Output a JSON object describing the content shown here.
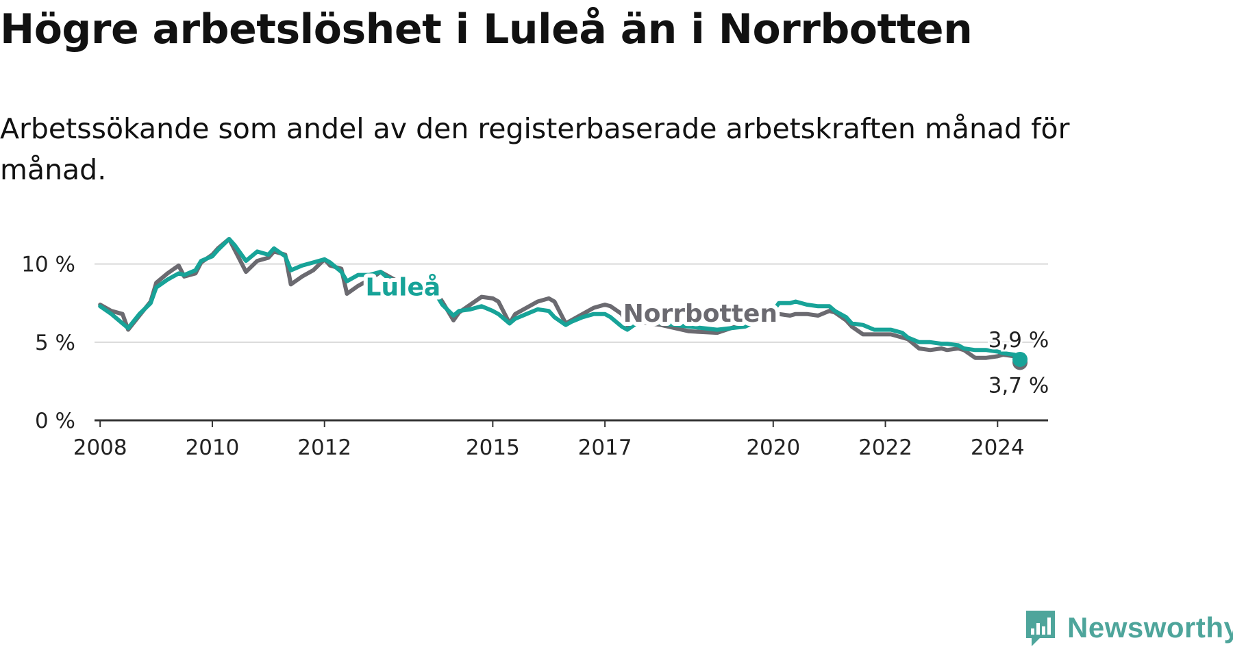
{
  "title": "Högre arbetslöshet i Luleå än i Norrbotten",
  "subtitle": "Arbetssökande som andel av den registerbaserade arbetskraften månad för månad.",
  "brand": {
    "name": "Newsworthy",
    "icon": "newsworthy-logo-icon",
    "color": "#4ea59b"
  },
  "chart_data": {
    "type": "line",
    "title": "Högre arbetslöshet i Luleå än i Norrbotten",
    "subtitle": "Arbetssökande som andel av den registerbaserade arbetskraften månad för månad.",
    "xlabel": "",
    "ylabel": "",
    "xlim": [
      2007.9,
      2024.9
    ],
    "ylim": [
      0,
      12
    ],
    "y_ticks": [
      0,
      5,
      10
    ],
    "y_tick_labels": [
      "0 %",
      "5 %",
      "10 %"
    ],
    "x_ticks": [
      2008,
      2010,
      2012,
      2015,
      2017,
      2020,
      2022,
      2024
    ],
    "x_tick_labels": [
      "2008",
      "2010",
      "2012",
      "2015",
      "2017",
      "2020",
      "2022",
      "2024"
    ],
    "grid": true,
    "series": [
      {
        "name": "Luleå",
        "color": "#17a398",
        "x": [
          2008.0,
          2008.2,
          2008.4,
          2008.5,
          2008.7,
          2008.9,
          2009.0,
          2009.2,
          2009.4,
          2009.5,
          2009.7,
          2009.8,
          2010.0,
          2010.1,
          2010.3,
          2010.4,
          2010.6,
          2010.8,
          2011.0,
          2011.1,
          2011.3,
          2011.4,
          2011.6,
          2011.8,
          2012.0,
          2012.1,
          2012.3,
          2012.4,
          2012.6,
          2012.8,
          2013.0,
          2013.1,
          2013.3,
          2013.4,
          2013.6,
          2013.8,
          2014.0,
          2014.1,
          2014.3,
          2014.4,
          2014.6,
          2014.8,
          2015.0,
          2015.1,
          2015.3,
          2015.4,
          2015.6,
          2015.8,
          2016.0,
          2016.1,
          2016.3,
          2016.4,
          2016.6,
          2016.8,
          2017.0,
          2017.1,
          2017.3,
          2017.4,
          2017.6,
          2017.8,
          2018.0,
          2018.5,
          2019.0,
          2019.5,
          2019.8,
          2020.0,
          2020.1,
          2020.3,
          2020.4,
          2020.6,
          2020.8,
          2021.0,
          2021.1,
          2021.3,
          2021.4,
          2021.6,
          2021.8,
          2022.0,
          2022.1,
          2022.3,
          2022.4,
          2022.6,
          2022.8,
          2023.0,
          2023.1,
          2023.3,
          2023.4,
          2023.6,
          2023.8,
          2024.0,
          2024.1,
          2024.3,
          2024.4
        ],
        "values": [
          7.3,
          6.8,
          6.2,
          5.9,
          6.8,
          7.5,
          8.5,
          9.0,
          9.4,
          9.3,
          9.6,
          10.2,
          10.5,
          10.9,
          11.6,
          11.2,
          10.2,
          10.8,
          10.6,
          11.0,
          10.5,
          9.6,
          9.9,
          10.1,
          10.3,
          10.1,
          9.5,
          8.9,
          9.3,
          9.3,
          9.5,
          9.2,
          8.8,
          8.6,
          8.5,
          8.4,
          8.0,
          7.4,
          6.7,
          7.0,
          7.1,
          7.3,
          7.0,
          6.8,
          6.2,
          6.5,
          6.8,
          7.1,
          7.0,
          6.6,
          6.1,
          6.3,
          6.6,
          6.8,
          6.8,
          6.6,
          6.0,
          5.8,
          6.3,
          6.5,
          6.2,
          6.0,
          5.8,
          6.0,
          6.5,
          7.0,
          7.5,
          7.5,
          7.6,
          7.4,
          7.3,
          7.3,
          7.0,
          6.6,
          6.2,
          6.1,
          5.8,
          5.8,
          5.8,
          5.6,
          5.3,
          5.0,
          5.0,
          4.9,
          4.9,
          4.8,
          4.6,
          4.5,
          4.5,
          4.4,
          4.3,
          4.2,
          3.9
        ]
      },
      {
        "name": "Norrbotten",
        "color": "#6b6a70",
        "x": [
          2008.0,
          2008.2,
          2008.4,
          2008.5,
          2008.7,
          2008.9,
          2009.0,
          2009.2,
          2009.4,
          2009.5,
          2009.7,
          2009.8,
          2010.0,
          2010.1,
          2010.3,
          2010.4,
          2010.6,
          2010.8,
          2011.0,
          2011.1,
          2011.3,
          2011.4,
          2011.6,
          2011.8,
          2012.0,
          2012.1,
          2012.3,
          2012.4,
          2012.6,
          2012.8,
          2013.0,
          2013.1,
          2013.3,
          2013.4,
          2013.6,
          2013.8,
          2014.0,
          2014.1,
          2014.3,
          2014.4,
          2014.6,
          2014.8,
          2015.0,
          2015.1,
          2015.3,
          2015.4,
          2015.6,
          2015.8,
          2016.0,
          2016.1,
          2016.3,
          2016.4,
          2016.6,
          2016.8,
          2017.0,
          2017.1,
          2017.3,
          2017.4,
          2017.6,
          2017.8,
          2018.0,
          2018.5,
          2019.0,
          2019.5,
          2019.8,
          2020.0,
          2020.1,
          2020.3,
          2020.4,
          2020.6,
          2020.8,
          2021.0,
          2021.1,
          2021.3,
          2021.4,
          2021.6,
          2021.8,
          2022.0,
          2022.1,
          2022.3,
          2022.4,
          2022.6,
          2022.8,
          2023.0,
          2023.1,
          2023.3,
          2023.4,
          2023.6,
          2023.8,
          2024.0,
          2024.1,
          2024.3,
          2024.4
        ],
        "values": [
          7.4,
          7.0,
          6.8,
          5.8,
          6.7,
          7.6,
          8.8,
          9.4,
          9.9,
          9.2,
          9.4,
          10.1,
          10.6,
          11.0,
          11.6,
          10.9,
          9.5,
          10.2,
          10.4,
          10.8,
          10.6,
          8.7,
          9.2,
          9.6,
          10.3,
          9.9,
          9.7,
          8.1,
          8.6,
          9.0,
          9.5,
          9.3,
          8.9,
          8.6,
          8.5,
          8.3,
          8.1,
          7.6,
          6.4,
          6.9,
          7.4,
          7.9,
          7.8,
          7.6,
          6.2,
          6.8,
          7.2,
          7.6,
          7.8,
          7.6,
          6.2,
          6.4,
          6.8,
          7.2,
          7.4,
          7.3,
          6.8,
          6.1,
          6.3,
          6.2,
          6.1,
          5.7,
          5.6,
          6.2,
          6.3,
          6.6,
          6.8,
          6.7,
          6.8,
          6.8,
          6.7,
          7.0,
          6.9,
          6.4,
          6.0,
          5.5,
          5.5,
          5.5,
          5.5,
          5.3,
          5.2,
          4.6,
          4.5,
          4.6,
          4.5,
          4.6,
          4.5,
          4.0,
          4.0,
          4.1,
          4.2,
          4.1,
          3.7
        ]
      }
    ],
    "labels": [
      {
        "series": "Luleå",
        "text": "Luleå",
        "x": 2013.4,
        "y": 8.0
      },
      {
        "series": "Norrbotten",
        "text": "Norrbotten",
        "x": 2018.7,
        "y": 6.3
      }
    ],
    "end_labels": [
      {
        "series": "Luleå",
        "text": "3,9 %",
        "x": 2024.4,
        "y": 3.9,
        "position": "above"
      },
      {
        "series": "Norrbotten",
        "text": "3,7 %",
        "x": 2024.4,
        "y": 3.7,
        "position": "below"
      }
    ]
  }
}
